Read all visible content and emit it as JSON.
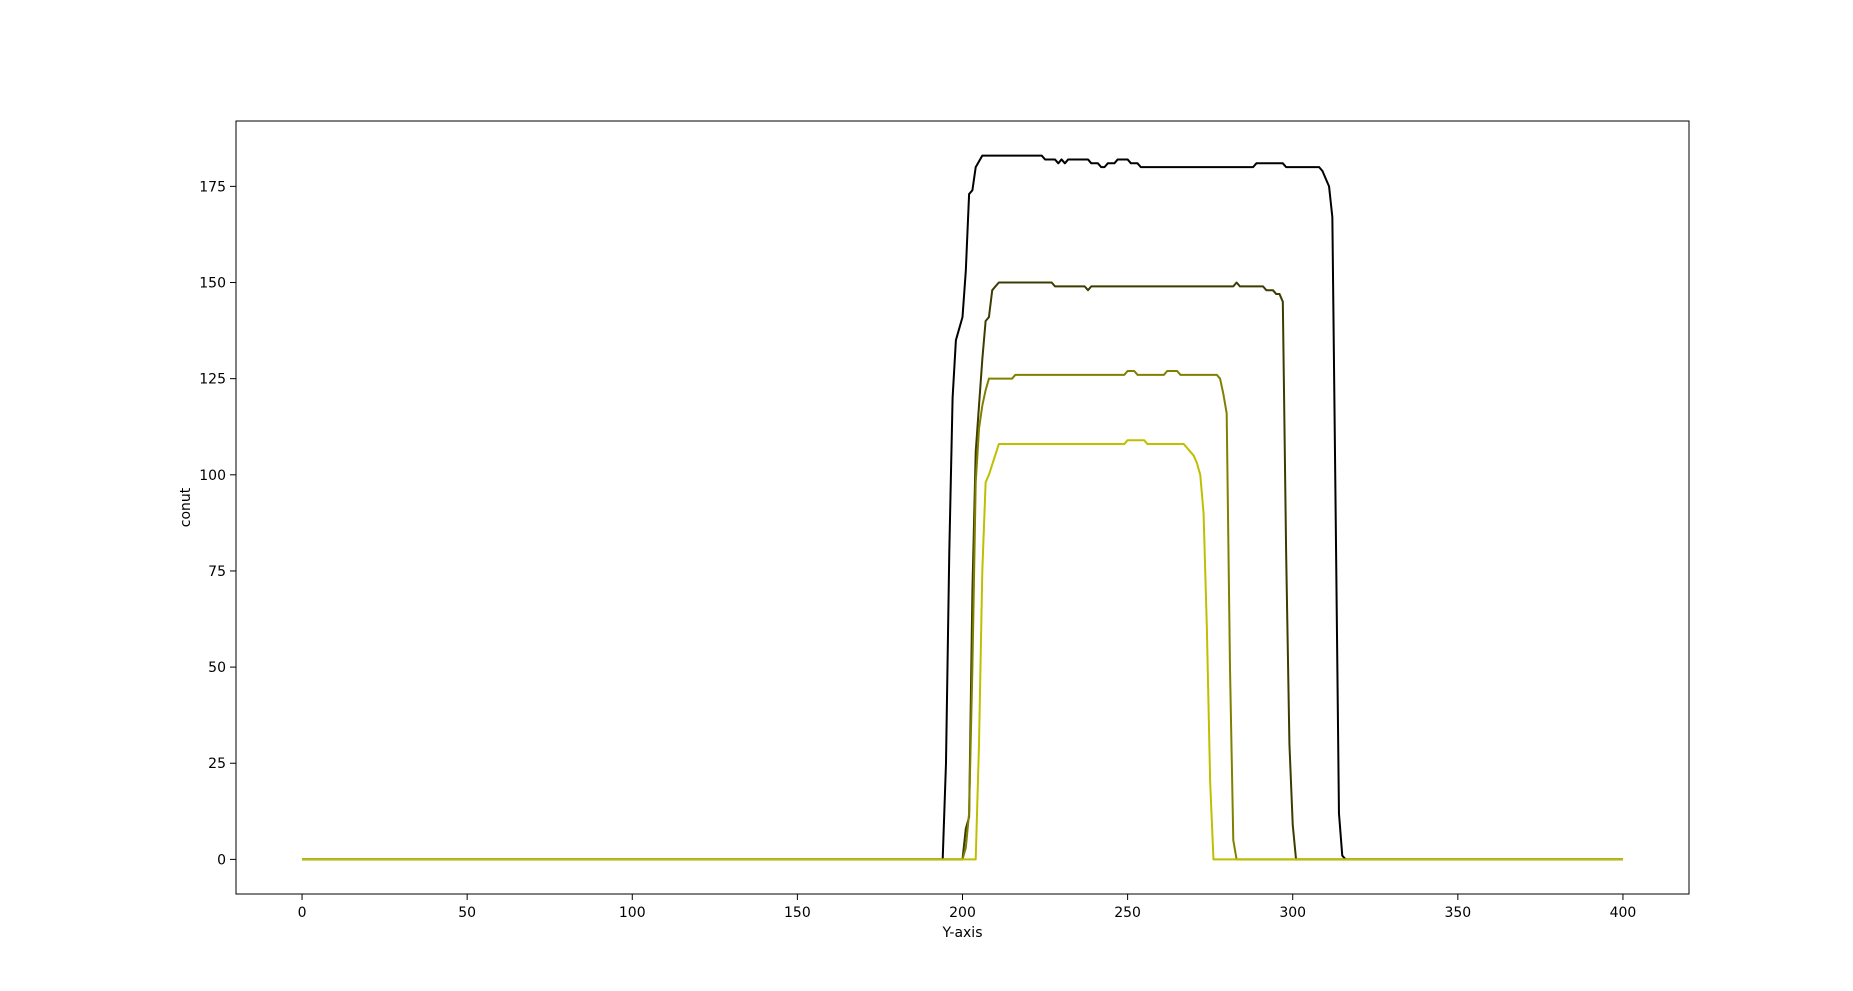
{
  "chart_data": {
    "type": "line",
    "title": "",
    "xlabel": "Y-axis",
    "ylabel": "conut",
    "xlim": [
      -20,
      420
    ],
    "ylim": [
      -9,
      192
    ],
    "xticks": [
      0,
      50,
      100,
      150,
      200,
      250,
      300,
      350,
      400
    ],
    "yticks": [
      0,
      25,
      50,
      75,
      100,
      125,
      150,
      175
    ],
    "grid": false,
    "legend": "none",
    "series": [
      {
        "color": "#000000",
        "points": [
          [
            0,
            0
          ],
          [
            194,
            0
          ],
          [
            195,
            25
          ],
          [
            196,
            80
          ],
          [
            197,
            120
          ],
          [
            198,
            135
          ],
          [
            200,
            141
          ],
          [
            201,
            153
          ],
          [
            202,
            173
          ],
          [
            203,
            174
          ],
          [
            204,
            180
          ],
          [
            206,
            183
          ],
          [
            224,
            183
          ],
          [
            225,
            182
          ],
          [
            228,
            182
          ],
          [
            229,
            181
          ],
          [
            230,
            182
          ],
          [
            231,
            181
          ],
          [
            232,
            182
          ],
          [
            238,
            182
          ],
          [
            239,
            181
          ],
          [
            241,
            181
          ],
          [
            242,
            180
          ],
          [
            243,
            180
          ],
          [
            244,
            181
          ],
          [
            246,
            181
          ],
          [
            247,
            182
          ],
          [
            250,
            182
          ],
          [
            251,
            181
          ],
          [
            253,
            181
          ],
          [
            254,
            180
          ],
          [
            288,
            180
          ],
          [
            289,
            181
          ],
          [
            297,
            181
          ],
          [
            298,
            180
          ],
          [
            308,
            180
          ],
          [
            309,
            179
          ],
          [
            311,
            175
          ],
          [
            312,
            167
          ],
          [
            313,
            90
          ],
          [
            314,
            12
          ],
          [
            315,
            1
          ],
          [
            316,
            0
          ],
          [
            400,
            0
          ]
        ]
      },
      {
        "color": "#3c3c00",
        "points": [
          [
            0,
            0
          ],
          [
            198,
            0
          ],
          [
            200,
            0
          ],
          [
            201,
            8
          ],
          [
            202,
            11
          ],
          [
            203,
            70
          ],
          [
            204,
            106
          ],
          [
            205,
            118
          ],
          [
            206,
            130
          ],
          [
            207,
            140
          ],
          [
            208,
            141
          ],
          [
            209,
            148
          ],
          [
            211,
            150
          ],
          [
            227,
            150
          ],
          [
            228,
            149
          ],
          [
            237,
            149
          ],
          [
            238,
            148
          ],
          [
            239,
            149
          ],
          [
            282,
            149
          ],
          [
            283,
            150
          ],
          [
            284,
            149
          ],
          [
            291,
            149
          ],
          [
            292,
            148
          ],
          [
            294,
            148
          ],
          [
            295,
            147
          ],
          [
            296,
            147
          ],
          [
            297,
            145
          ],
          [
            298,
            80
          ],
          [
            299,
            30
          ],
          [
            300,
            9
          ],
          [
            301,
            0
          ],
          [
            400,
            0
          ]
        ]
      },
      {
        "color": "#808000",
        "points": [
          [
            0,
            0
          ],
          [
            200,
            0
          ],
          [
            201,
            3
          ],
          [
            202,
            12
          ],
          [
            203,
            50
          ],
          [
            204,
            98
          ],
          [
            205,
            112
          ],
          [
            206,
            118
          ],
          [
            207,
            122
          ],
          [
            208,
            125
          ],
          [
            215,
            125
          ],
          [
            216,
            126
          ],
          [
            249,
            126
          ],
          [
            250,
            127
          ],
          [
            252,
            127
          ],
          [
            253,
            126
          ],
          [
            261,
            126
          ],
          [
            262,
            127
          ],
          [
            265,
            127
          ],
          [
            266,
            126
          ],
          [
            277,
            126
          ],
          [
            278,
            125
          ],
          [
            279,
            121
          ],
          [
            280,
            116
          ],
          [
            281,
            50
          ],
          [
            282,
            5
          ],
          [
            283,
            0
          ],
          [
            400,
            0
          ]
        ]
      },
      {
        "color": "#bfbf00",
        "points": [
          [
            0,
            0
          ],
          [
            204,
            0
          ],
          [
            205,
            30
          ],
          [
            206,
            75
          ],
          [
            207,
            98
          ],
          [
            208,
            100
          ],
          [
            211,
            108
          ],
          [
            249,
            108
          ],
          [
            250,
            109
          ],
          [
            255,
            109
          ],
          [
            256,
            108
          ],
          [
            267,
            108
          ],
          [
            268,
            107
          ],
          [
            270,
            105
          ],
          [
            271,
            103
          ],
          [
            272,
            100
          ],
          [
            273,
            90
          ],
          [
            274,
            60
          ],
          [
            275,
            20
          ],
          [
            276,
            0
          ],
          [
            400,
            0
          ]
        ]
      }
    ]
  }
}
